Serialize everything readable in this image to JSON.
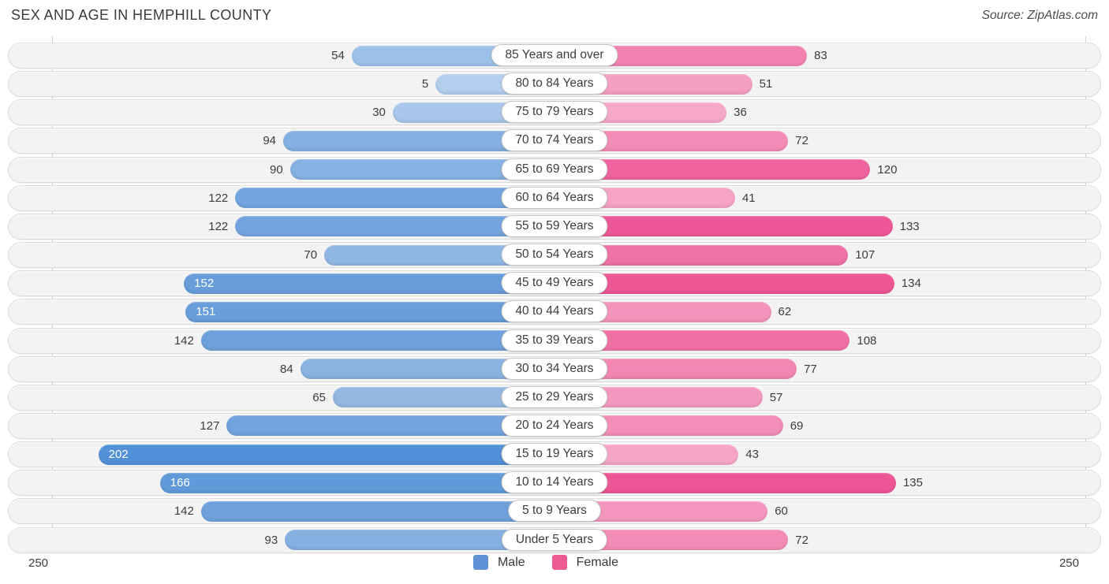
{
  "title": "SEX AND AGE IN HEMPHILL COUNTY",
  "source": "Source: ZipAtlas.com",
  "axis": {
    "left_label": "250",
    "right_label": "250",
    "max": 250
  },
  "legend": {
    "male_label": "Male",
    "female_label": "Female",
    "male_color": "#5f93d6",
    "female_color": "#ee5a92"
  },
  "chart_data": {
    "type": "bar",
    "variant": "population-pyramid",
    "title": "SEX AND AGE IN HEMPHILL COUNTY",
    "xlim": [
      -250,
      250
    ],
    "grid": "edge-ticks-only",
    "legend_position": "bottom-center",
    "categories": [
      "85 Years and over",
      "80 to 84 Years",
      "75 to 79 Years",
      "70 to 74 Years",
      "65 to 69 Years",
      "60 to 64 Years",
      "55 to 59 Years",
      "50 to 54 Years",
      "45 to 49 Years",
      "40 to 44 Years",
      "35 to 39 Years",
      "30 to 34 Years",
      "25 to 29 Years",
      "20 to 24 Years",
      "15 to 19 Years",
      "10 to 14 Years",
      "5 to 9 Years",
      "Under 5 Years"
    ],
    "series": [
      {
        "name": "Male",
        "direction": "left",
        "values": [
          54,
          5,
          30,
          94,
          90,
          122,
          122,
          70,
          152,
          151,
          142,
          84,
          65,
          127,
          202,
          166,
          142,
          93
        ],
        "colors": [
          "#9cc0e8",
          "#b3cfee",
          "#a8c7eb",
          "#84afe0",
          "#86b1e1",
          "#74a4dd",
          "#74a4dd",
          "#90b7e4",
          "#689dda",
          "#699eda",
          "#6ea1db",
          "#8ab3e1",
          "#93b9e3",
          "#72a3dd",
          "#5290d7",
          "#619ad9",
          "#6ea1db",
          "#85b0e0"
        ]
      },
      {
        "name": "Female",
        "direction": "right",
        "values": [
          83,
          51,
          36,
          72,
          120,
          41,
          133,
          107,
          134,
          62,
          108,
          77,
          57,
          69,
          43,
          135,
          60,
          72
        ],
        "colors": [
          "#f283b1",
          "#f59fc3",
          "#f6a8c9",
          "#f28cb6",
          "#ef639e",
          "#f6a3c6",
          "#ee5797",
          "#f071a6",
          "#ee5696",
          "#f494bc",
          "#f070a5",
          "#f187b2",
          "#f498c0",
          "#f28eb8",
          "#f6a5c7",
          "#ee5596",
          "#f496be",
          "#f28cb6"
        ]
      }
    ]
  }
}
